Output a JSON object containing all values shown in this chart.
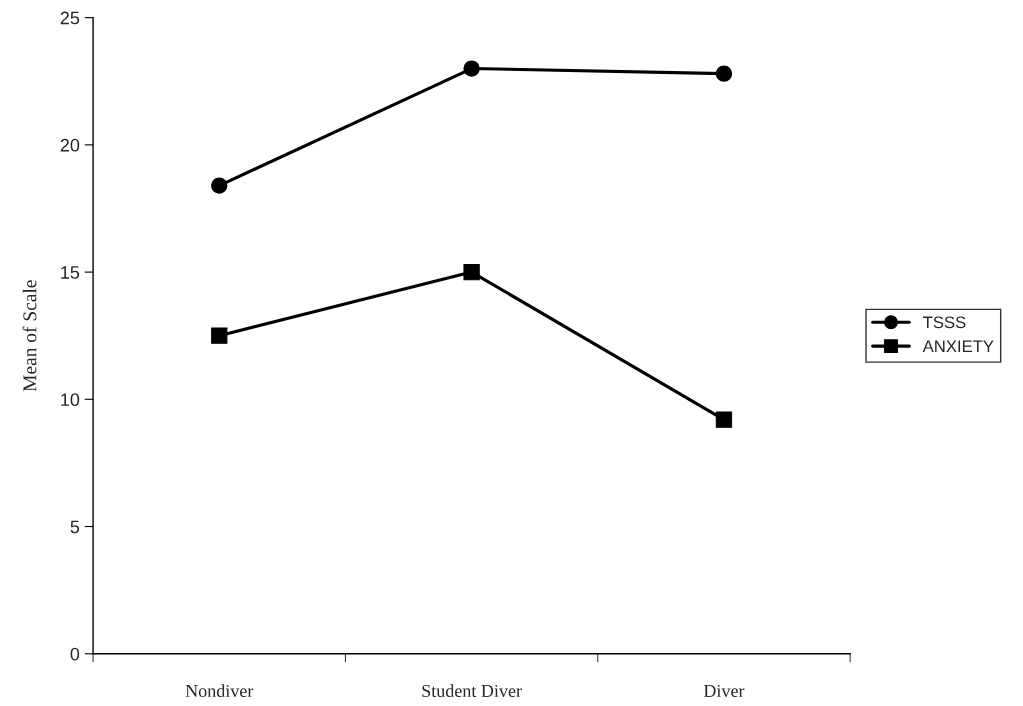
{
  "chart_data": {
    "type": "line",
    "ylabel": "Mean of Scale",
    "categories": [
      "Nondiver",
      "Student Diver",
      "Diver"
    ],
    "series": [
      {
        "name": "TSSS",
        "color": "#000000",
        "marker": "circle",
        "values": [
          18.4,
          23.0,
          22.8
        ]
      },
      {
        "name": "ANXIETY",
        "color": "#000000",
        "marker": "square",
        "values": [
          12.5,
          15.0,
          9.2
        ]
      }
    ],
    "ylim": [
      0,
      25
    ],
    "yticks": [
      0,
      5,
      10,
      15,
      20,
      25
    ],
    "grid": false,
    "legend": "right",
    "line_style": "solid"
  }
}
